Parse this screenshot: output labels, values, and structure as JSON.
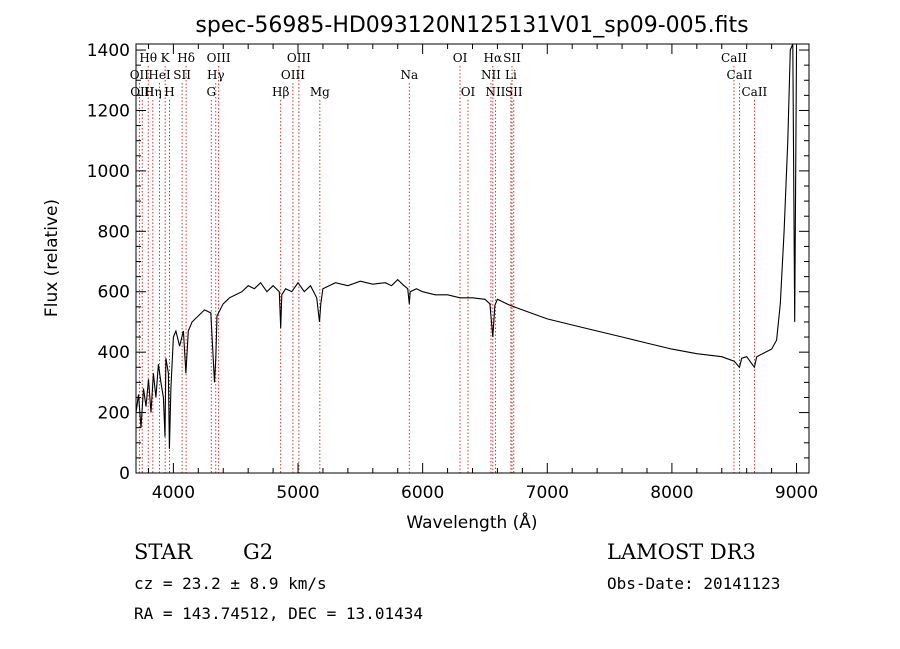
{
  "chart_data": {
    "type": "line",
    "title": "spec-56985-HD093120N125131V01_sp09-005.fits",
    "xlabel": "Wavelength (Å)",
    "ylabel": "Flux (relative)",
    "xlim": [
      3700,
      9100
    ],
    "ylim": [
      0,
      1420
    ],
    "x_ticks": [
      4000,
      5000,
      6000,
      7000,
      8000,
      9000
    ],
    "x_tick_labels": [
      "4000",
      "5000",
      "6000",
      "7000",
      "8000",
      "9000"
    ],
    "y_ticks": [
      0,
      200,
      400,
      600,
      800,
      1000,
      1200,
      1400
    ],
    "y_tick_labels": [
      "0",
      "200",
      "400",
      "600",
      "800",
      "1000",
      "1200",
      "1400"
    ],
    "series": [
      {
        "name": "spectrum",
        "x": [
          3700,
          3720,
          3740,
          3760,
          3780,
          3800,
          3820,
          3840,
          3860,
          3880,
          3900,
          3920,
          3933,
          3940,
          3960,
          3968,
          3980,
          4000,
          4020,
          4050,
          4080,
          4100,
          4120,
          4150,
          4200,
          4250,
          4300,
          4330,
          4340,
          4350,
          4400,
          4450,
          4500,
          4550,
          4600,
          4650,
          4700,
          4750,
          4800,
          4850,
          4861,
          4870,
          4900,
          4950,
          5000,
          5050,
          5100,
          5150,
          5172,
          5183,
          5200,
          5250,
          5300,
          5400,
          5500,
          5600,
          5700,
          5750,
          5800,
          5850,
          5880,
          5893,
          5900,
          5950,
          6000,
          6100,
          6200,
          6300,
          6400,
          6500,
          6540,
          6563,
          6580,
          6600,
          6700,
          6800,
          6900,
          7000,
          7200,
          7400,
          7600,
          7800,
          8000,
          8200,
          8400,
          8500,
          8542,
          8560,
          8600,
          8662,
          8680,
          8750,
          8800,
          8840,
          8870,
          8900,
          8930,
          8950,
          8970,
          8985,
          9000
        ],
        "values": [
          200,
          260,
          150,
          280,
          220,
          310,
          200,
          330,
          250,
          360,
          300,
          250,
          120,
          380,
          330,
          80,
          280,
          450,
          470,
          420,
          470,
          330,
          470,
          500,
          520,
          540,
          530,
          300,
          380,
          520,
          560,
          580,
          590,
          600,
          620,
          610,
          630,
          600,
          620,
          600,
          480,
          590,
          610,
          600,
          630,
          600,
          620,
          580,
          500,
          560,
          610,
          620,
          630,
          620,
          635,
          625,
          630,
          620,
          640,
          620,
          610,
          560,
          600,
          610,
          600,
          590,
          590,
          580,
          580,
          575,
          560,
          450,
          555,
          575,
          555,
          540,
          525,
          510,
          490,
          470,
          450,
          430,
          410,
          395,
          385,
          370,
          350,
          380,
          385,
          350,
          385,
          400,
          410,
          440,
          560,
          800,
          1100,
          1400,
          1420,
          500,
          1400
        ]
      }
    ],
    "line_markers": [
      {
        "row": 1,
        "label": "Hθ",
        "x": 3798
      },
      {
        "row": 1,
        "label": "K",
        "x": 3934
      },
      {
        "row": 1,
        "label": "Hδ",
        "x": 4102
      },
      {
        "row": 1,
        "label": "OIII",
        "x": 4363
      },
      {
        "row": 1,
        "label": "OIII",
        "x": 5007
      },
      {
        "row": 1,
        "label": "OI",
        "x": 6300
      },
      {
        "row": 1,
        "label": "Hα",
        "x": 6563
      },
      {
        "row": 1,
        "label": "SII",
        "x": 6717
      },
      {
        "row": 1,
        "label": "CaII",
        "x": 8498
      },
      {
        "row": 2,
        "label": "OII",
        "x": 3727
      },
      {
        "row": 2,
        "label": "HeI",
        "x": 3889
      },
      {
        "row": 2,
        "label": "SII",
        "x": 4070
      },
      {
        "row": 2,
        "label": "Hγ",
        "x": 4340
      },
      {
        "row": 2,
        "label": "OIII",
        "x": 4959
      },
      {
        "row": 2,
        "label": "Na",
        "x": 5893
      },
      {
        "row": 2,
        "label": "NII",
        "x": 6548
      },
      {
        "row": 2,
        "label": "Li",
        "x": 6708
      },
      {
        "row": 2,
        "label": "CaII",
        "x": 8542
      },
      {
        "row": 3,
        "label": "OIII",
        "x": 3750
      },
      {
        "row": 3,
        "label": "Hη",
        "x": 3835
      },
      {
        "row": 3,
        "label": "H",
        "x": 3969
      },
      {
        "row": 3,
        "label": "G",
        "x": 4304
      },
      {
        "row": 3,
        "label": "Hβ",
        "x": 4861
      },
      {
        "row": 3,
        "label": "Mg",
        "x": 5175
      },
      {
        "row": 3,
        "label": "OI",
        "x": 6364
      },
      {
        "row": 3,
        "label": "NII",
        "x": 6584
      },
      {
        "row": 3,
        "label": "SII",
        "x": 6731
      },
      {
        "row": 3,
        "label": "CaII",
        "x": 8662
      }
    ]
  },
  "info": {
    "object_class": "STAR",
    "subclass": "G2",
    "survey": "LAMOST DR3",
    "redshift_text": "cz = 23.2 ± 8.9 km/s",
    "obs_date_text": "Obs-Date: 20141123",
    "coords_text": "RA = 143.74512, DEC =  13.01434"
  },
  "colors": {
    "line": "#000000",
    "marker": "#cc2222",
    "background": "#ffffff"
  }
}
